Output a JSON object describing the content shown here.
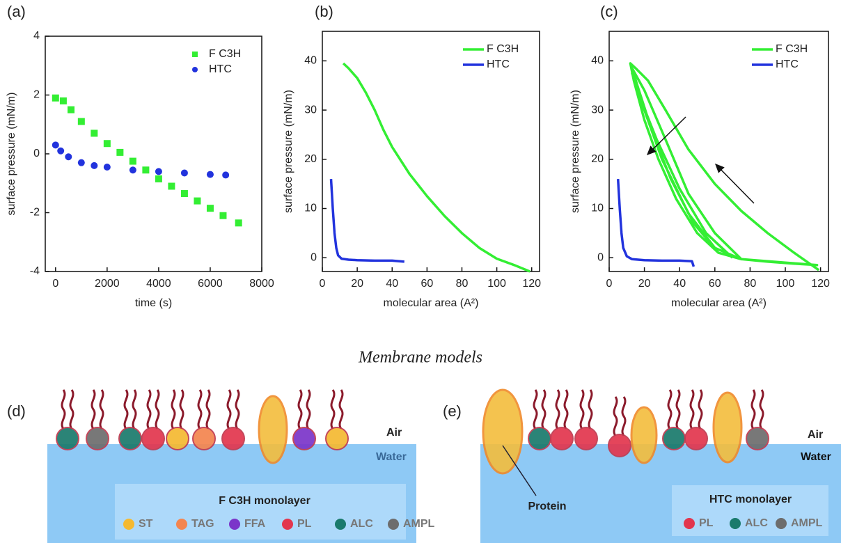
{
  "chart_data": [
    {
      "type": "scatter",
      "panel_label": "(a)",
      "x_label": "time (s)",
      "y_label": "surface pressure (mN/m)",
      "xlim": [
        -400,
        8000
      ],
      "xticks": [
        0,
        2000,
        4000,
        6000,
        8000
      ],
      "ylim": [
        -4,
        4
      ],
      "yticks": [
        -4,
        -2,
        0,
        2,
        4
      ],
      "legend": "upper right",
      "series": [
        {
          "name": "F C3H",
          "color": "#33ee33",
          "marker": "square",
          "x": [
            0,
            300,
            600,
            1000,
            1500,
            2000,
            2500,
            3000,
            3500,
            4000,
            4500,
            5000,
            5500,
            6000,
            6500,
            7100
          ],
          "values": [
            1.9,
            1.8,
            1.5,
            1.1,
            0.7,
            0.35,
            0.05,
            -0.25,
            -0.55,
            -0.85,
            -1.1,
            -1.35,
            -1.6,
            -1.85,
            -2.1,
            -2.35
          ]
        },
        {
          "name": "HTC",
          "color": "#2233dd",
          "marker": "circle",
          "x": [
            0,
            200,
            500,
            1000,
            1500,
            2000,
            3000,
            4000,
            5000,
            6000,
            6600
          ],
          "values": [
            0.3,
            0.1,
            -0.1,
            -0.3,
            -0.4,
            -0.45,
            -0.55,
            -0.6,
            -0.65,
            -0.7,
            -0.72
          ]
        }
      ]
    },
    {
      "type": "line",
      "panel_label": "(b)",
      "x_label": "molecular area (A²)",
      "y_label": "surface pressure (mN/m)",
      "xlim": [
        0,
        124.5
      ],
      "xticks": [
        0,
        20,
        40,
        60,
        80,
        100,
        120
      ],
      "ylim": [
        -2.8,
        46
      ],
      "yticks": [
        0,
        10,
        20,
        30,
        40
      ],
      "legend": "upper right",
      "series": [
        {
          "name": "F C3H",
          "color": "#33ee33",
          "x": [
            12,
            15,
            20,
            25,
            30,
            35,
            40,
            50,
            60,
            70,
            80,
            90,
            100,
            110,
            119
          ],
          "values": [
            39.5,
            38.5,
            36.5,
            33.5,
            30,
            26,
            22.5,
            17,
            12.5,
            8.5,
            5,
            2,
            -0.2,
            -1.5,
            -2.8
          ]
        },
        {
          "name": "HTC",
          "color": "#2233dd",
          "x": [
            5,
            6,
            7,
            8,
            9,
            11,
            15,
            20,
            30,
            40,
            47
          ],
          "values": [
            16,
            10,
            5,
            2,
            0.5,
            -0.2,
            -0.4,
            -0.5,
            -0.6,
            -0.6,
            -0.8
          ]
        }
      ]
    },
    {
      "type": "line",
      "panel_label": "(c)",
      "x_label": "molecular area (A²)",
      "y_label": "surface pressure (mN/m)",
      "xlim": [
        0,
        124.5
      ],
      "xticks": [
        0,
        20,
        40,
        60,
        80,
        100,
        120
      ],
      "ylim": [
        -2.8,
        46
      ],
      "yticks": [
        0,
        10,
        20,
        30,
        40
      ],
      "legend": "upper right",
      "series": [
        {
          "name": "F C3H",
          "color": "#33ee33",
          "x": [
            119,
            105,
            90,
            75,
            60,
            45,
            32,
            22,
            15,
            12,
            14,
            20,
            28,
            38,
            50,
            62,
            75,
            90,
            105,
            118,
            75,
            60,
            45,
            32,
            20,
            13,
            16,
            25,
            35,
            48,
            62,
            75,
            60,
            45,
            30,
            18,
            13,
            17,
            27,
            40,
            55,
            70
          ],
          "values": [
            -2.5,
            1,
            5,
            9.5,
            15,
            22,
            30,
            36,
            38.5,
            39.5,
            36,
            28,
            20,
            12,
            5,
            1,
            -0.3,
            -0.8,
            -1.2,
            -1.5,
            -0.3,
            5,
            13,
            24,
            34,
            38.5,
            35,
            25,
            16,
            7,
            1,
            -0.3,
            2,
            9,
            20,
            32,
            37.5,
            33,
            24,
            14,
            5,
            0
          ]
        },
        {
          "name": "HTC",
          "color": "#2233dd",
          "x": [
            5,
            6,
            7,
            8,
            10,
            13,
            20,
            30,
            40,
            47,
            48
          ],
          "values": [
            16,
            10,
            5,
            2,
            0.3,
            -0.3,
            -0.5,
            -0.6,
            -0.6,
            -0.7,
            -1.8
          ]
        }
      ]
    }
  ],
  "diagram": {
    "title": "Membrane models",
    "panels": [
      {
        "label": "(d)",
        "air": "Air",
        "water": "Water",
        "legend_title": "F C3H monolayer",
        "legend": [
          {
            "name": "ST",
            "color": "#f5b931"
          },
          {
            "name": "TAG",
            "color": "#f4854f"
          },
          {
            "name": "FFA",
            "color": "#7b35c9"
          },
          {
            "name": "PL",
            "color": "#e2364e"
          },
          {
            "name": "ALC",
            "color": "#1a7a6c"
          },
          {
            "name": "AMPL",
            "color": "#6d6d6d"
          }
        ]
      },
      {
        "label": "(e)",
        "air": "Air",
        "water": "Water",
        "legend_title": "HTC monolayer",
        "protein": "Protein",
        "legend": [
          {
            "name": "PL",
            "color": "#e2364e"
          },
          {
            "name": "ALC",
            "color": "#1a7a6c"
          },
          {
            "name": "AMPL",
            "color": "#6d6d6d"
          }
        ]
      }
    ]
  }
}
